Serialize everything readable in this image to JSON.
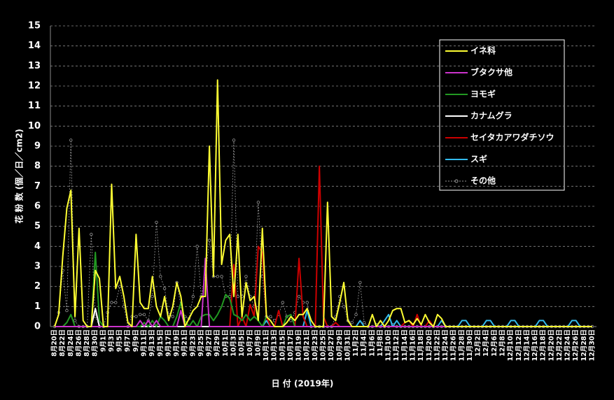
{
  "chart_data": {
    "type": "line",
    "y_label": "花 粉 数 (個／日／cm2)",
    "x_label": "日 付 (2019年)",
    "ylim": [
      0,
      15
    ],
    "yticks": [
      0,
      1,
      2,
      3,
      4,
      5,
      6,
      7,
      8,
      9,
      10,
      11,
      12,
      13,
      14,
      15
    ],
    "grid": true,
    "legend": "upper right",
    "categories": [
      "8月20日",
      null,
      "8月22日",
      null,
      "8月24日",
      null,
      "8月26日",
      null,
      "8月28日",
      null,
      "8月30日",
      null,
      "9月1日",
      null,
      "9月3日",
      null,
      "9月5日",
      null,
      "9月7日",
      null,
      "9月9日",
      null,
      "9月11日",
      null,
      "9月13日",
      null,
      "9月15日",
      null,
      "9月17日",
      null,
      "9月19日",
      null,
      "9月21日",
      null,
      "9月23日",
      null,
      "9月25日",
      null,
      "9月27日",
      null,
      "9月29日",
      null,
      "10月1日",
      null,
      "10月3日",
      null,
      "10月5日",
      null,
      "10月7日",
      null,
      "10月9日",
      null,
      "10月11日",
      null,
      "10月13日",
      null,
      "10月15日",
      null,
      "10月17日",
      null,
      "10月19日",
      null,
      "10月21日",
      null,
      "10月23日",
      null,
      "10月25日",
      null,
      "10月27日",
      null,
      "10月29日",
      null,
      "10月31日",
      null,
      "11月2日",
      null,
      "11月4日",
      null,
      "11月6日",
      null,
      "11月8日",
      null,
      "11月10日",
      null,
      "11月12日",
      null,
      "11月14日",
      null,
      "11月16日",
      null,
      "11月18日",
      null,
      "11月20日",
      null,
      "11月22日",
      null,
      "11月24日",
      null,
      "11月26日",
      null,
      "11月28日",
      null,
      "11月30日",
      null,
      "12月2日",
      null,
      "12月4日",
      null,
      "12月6日",
      null,
      "12月8日",
      null,
      "12月10日",
      null,
      "12月12日",
      null,
      "12月14日",
      null,
      "12月16日",
      null,
      "12月18日",
      null,
      "12月20日",
      null,
      "12月22日",
      null,
      "12月24日",
      null,
      "12月26日",
      null,
      "12月28日",
      null,
      "12月30日"
    ],
    "series": [
      {
        "name": "イネ科",
        "color": "#ffff33",
        "values": [
          0,
          0.6,
          3.5,
          5.9,
          6.8,
          0.5,
          4.9,
          0.3,
          0,
          0,
          2.8,
          2.4,
          0,
          0,
          7.1,
          1.9,
          2.5,
          1.5,
          0.2,
          0,
          4.6,
          1.2,
          0.9,
          0.9,
          2.5,
          1.0,
          0.5,
          1.5,
          0.3,
          1.0,
          2.2,
          1.5,
          0,
          0.4,
          0.8,
          1.0,
          1.5,
          1.5,
          9.0,
          2.5,
          12.3,
          3.1,
          4.3,
          4.6,
          1.5,
          4.6,
          0.5,
          2.2,
          1.3,
          1.5,
          0.3,
          4.9,
          0.5,
          0.3,
          0,
          0,
          0,
          0.2,
          0.5,
          0.3,
          0.6,
          0.6,
          0.9,
          0.3,
          0,
          0,
          0,
          6.2,
          0.5,
          0.3,
          1.2,
          2.2,
          0.3,
          0,
          0,
          0,
          0,
          0,
          0.6,
          0,
          0.3,
          0,
          0.3,
          0.8,
          0.9,
          0.9,
          0.2,
          0.3,
          0.1,
          0.4,
          0.1,
          0.6,
          0.2,
          0,
          0.6,
          0.4,
          0,
          0,
          0,
          0,
          0,
          0,
          0,
          0,
          0,
          0,
          0,
          0,
          0,
          0,
          0,
          0,
          0,
          0,
          0,
          0,
          0,
          0,
          0,
          0,
          0,
          0,
          0,
          0,
          0,
          0,
          0,
          0,
          0,
          0,
          0,
          0,
          0
        ]
      },
      {
        "name": "ブタクサ他",
        "color": "#cc33cc",
        "values": [
          0,
          0,
          0,
          0,
          0,
          0,
          0,
          0,
          0,
          0,
          0,
          0,
          0,
          0,
          0,
          0,
          0,
          0,
          0,
          0,
          0,
          0.3,
          0,
          0.3,
          0,
          0.3,
          0,
          0,
          0,
          0,
          0,
          0.8,
          0,
          0,
          0,
          0,
          0,
          3.4,
          0,
          0,
          0,
          0,
          0,
          0,
          0,
          0,
          0,
          0,
          0,
          0,
          0,
          0,
          0,
          0,
          0,
          0,
          0,
          0,
          0,
          0,
          0,
          0,
          0,
          0,
          0,
          0,
          0,
          0,
          0,
          0,
          0,
          0,
          0,
          0,
          0,
          0,
          0,
          0,
          0,
          0,
          0,
          0,
          0,
          0,
          0,
          0,
          0,
          0,
          0,
          0,
          0,
          0,
          0,
          0,
          0,
          0,
          0,
          0,
          0,
          0,
          0,
          0,
          0,
          0,
          0,
          0,
          0,
          0,
          0,
          0,
          0,
          0,
          0,
          0,
          0,
          0,
          0,
          0,
          0,
          0,
          0,
          0,
          0,
          0,
          0,
          0,
          0,
          0,
          0,
          0,
          0,
          0,
          0
        ]
      },
      {
        "name": "ヨモギ",
        "color": "#229922",
        "values": [
          0,
          0,
          0,
          0.2,
          0.6,
          0,
          0,
          0,
          0,
          0,
          3.7,
          0.3,
          0,
          0,
          0,
          0,
          0,
          0,
          0,
          0,
          0,
          0,
          0.2,
          0,
          0.3,
          0,
          0.5,
          0.3,
          0,
          0,
          0.5,
          1.2,
          0.3,
          0,
          0.3,
          0,
          0.5,
          0.6,
          0.6,
          0.3,
          0.6,
          1.0,
          1.6,
          1.4,
          0.6,
          0.5,
          0.3,
          0.6,
          0.3,
          0.5,
          0.3,
          0,
          0.5,
          0.3,
          0,
          0,
          0,
          0.5,
          0.6,
          0,
          0,
          0,
          0,
          0,
          0,
          0,
          0,
          0,
          0,
          0,
          0,
          0,
          0,
          0,
          0,
          0,
          0,
          0,
          0,
          0,
          0,
          0,
          0,
          0,
          0,
          0,
          0,
          0,
          0,
          0,
          0,
          0,
          0,
          0,
          0,
          0,
          0,
          0,
          0,
          0,
          0,
          0,
          0,
          0,
          0,
          0,
          0,
          0,
          0,
          0,
          0,
          0,
          0,
          0,
          0,
          0,
          0,
          0,
          0,
          0,
          0,
          0,
          0,
          0,
          0,
          0,
          0,
          0,
          0,
          0,
          0,
          0,
          0
        ]
      },
      {
        "name": "カナムグラ",
        "color": "#ffffff",
        "values": [
          0,
          0,
          0,
          0,
          0,
          0,
          0,
          0,
          0,
          0,
          0.9,
          0,
          0,
          0,
          0,
          0,
          0,
          0,
          0,
          0,
          0,
          0,
          0,
          0,
          0,
          0,
          0,
          0,
          0,
          0,
          0,
          0,
          0,
          0,
          0,
          0,
          0,
          0,
          0,
          0,
          0,
          0,
          0,
          0,
          0,
          0,
          0,
          0,
          0,
          0,
          0,
          0,
          0,
          0,
          0,
          0,
          0,
          0,
          0,
          0,
          0,
          0,
          0,
          0,
          0,
          0,
          0,
          0,
          0,
          0,
          0,
          0,
          0,
          0,
          0,
          0,
          0,
          0,
          0,
          0,
          0,
          0,
          0,
          0,
          0,
          0,
          0,
          0,
          0,
          0,
          0,
          0,
          0,
          0,
          0,
          0,
          0,
          0,
          0,
          0,
          0,
          0,
          0,
          0,
          0,
          0,
          0,
          0,
          0,
          0,
          0,
          0,
          0,
          0,
          0,
          0,
          0,
          0,
          0,
          0,
          0,
          0,
          0,
          0,
          0,
          0,
          0,
          0,
          0,
          0,
          0,
          0,
          0
        ]
      },
      {
        "name": "セイタカアワダチソウ",
        "color": "#cc0000",
        "values": [
          0,
          0,
          0,
          0,
          0,
          0,
          0,
          0,
          0,
          0,
          0,
          0,
          0,
          0,
          0,
          0,
          0,
          0,
          0,
          0,
          0,
          0,
          0,
          0,
          0,
          0,
          0,
          0,
          0,
          0,
          0,
          0,
          0,
          0,
          0,
          0,
          0,
          0,
          0,
          0,
          0,
          0,
          0,
          0,
          3.1,
          0,
          0.5,
          0,
          1.1,
          0.5,
          4.0,
          3.7,
          0.5,
          0,
          0,
          0.8,
          0,
          0,
          0,
          0,
          3.4,
          0.5,
          0,
          0,
          0,
          8.0,
          0.5,
          0,
          0,
          0.2,
          0,
          0,
          0,
          0,
          0,
          0,
          0,
          0,
          0,
          0,
          0,
          0,
          0,
          0,
          0,
          0,
          0.2,
          0.3,
          0,
          0.6,
          0,
          0,
          0.3,
          0,
          0,
          0,
          0,
          0,
          0,
          0,
          0,
          0,
          0,
          0,
          0,
          0,
          0,
          0,
          0,
          0,
          0,
          0,
          0,
          0,
          0,
          0,
          0,
          0,
          0,
          0,
          0,
          0,
          0,
          0,
          0,
          0,
          0,
          0,
          0,
          0,
          0,
          0,
          0
        ]
      },
      {
        "name": "スギ",
        "color": "#33bbee",
        "values": [
          0,
          0,
          0,
          0,
          0,
          0,
          0,
          0,
          0,
          0,
          0,
          0,
          0,
          0,
          0,
          0,
          0,
          0,
          0,
          0,
          0,
          0,
          0,
          0,
          0,
          0,
          0,
          0,
          0,
          0,
          0,
          0,
          0,
          0,
          0,
          0,
          0,
          0,
          0,
          0,
          0,
          0,
          0,
          0,
          0,
          0,
          0,
          0,
          0,
          0,
          0,
          0,
          0.3,
          0,
          0,
          0,
          0,
          0,
          0,
          0,
          0,
          0,
          0.8,
          0,
          0,
          0,
          0,
          0,
          0,
          0,
          0,
          0,
          0,
          0,
          0,
          0.3,
          0,
          0,
          0,
          0,
          0,
          0.3,
          0.6,
          0,
          0.3,
          0,
          0,
          0,
          0,
          0,
          0,
          0,
          0,
          0,
          0,
          0.3,
          0,
          0,
          0,
          0,
          0.3,
          0.3,
          0,
          0,
          0,
          0,
          0.3,
          0.3,
          0,
          0,
          0,
          0,
          0.3,
          0.3,
          0,
          0,
          0,
          0,
          0,
          0.3,
          0.3,
          0,
          0,
          0,
          0,
          0,
          0,
          0.3,
          0.3,
          0,
          0,
          0,
          0
        ]
      },
      {
        "name": "その他",
        "color": "#999999",
        "dash": true,
        "values": [
          0,
          0.7,
          2.8,
          0.8,
          9.3,
          0.3,
          0,
          0,
          0,
          4.6,
          0.5,
          0,
          0,
          0.7,
          1.2,
          1.2,
          2.0,
          1.0,
          0,
          0.5,
          0.5,
          0.6,
          0.6,
          0.3,
          1.5,
          5.2,
          2.5,
          1.9,
          0.6,
          0.5,
          2.2,
          1.0,
          0.5,
          0.4,
          1.5,
          4.0,
          1.5,
          2.5,
          4.3,
          2.5,
          2.5,
          2.5,
          1.5,
          1.5,
          9.3,
          1.5,
          1.5,
          2.5,
          1.5,
          1.0,
          6.2,
          2.5,
          0.5,
          0.5,
          0.3,
          0.6,
          1.2,
          0.5,
          0.3,
          0.7,
          1.5,
          1.2,
          1.2,
          0,
          0,
          0,
          0,
          0,
          0,
          0.5,
          1.5,
          1.0,
          0.3,
          0.2,
          0.6,
          2.2,
          0.2,
          0,
          0,
          0.1,
          0,
          0,
          0,
          0.1,
          0,
          0,
          0,
          0,
          0,
          0,
          0,
          0,
          0,
          0,
          0,
          0,
          0,
          0,
          0,
          0,
          0,
          0,
          0,
          0,
          0,
          0,
          0,
          0,
          0,
          0,
          0,
          0,
          0,
          0,
          0,
          0,
          0,
          0,
          0,
          0,
          0,
          0,
          0,
          0,
          0,
          0,
          0,
          0,
          0,
          0,
          0,
          0,
          0
        ]
      }
    ]
  }
}
